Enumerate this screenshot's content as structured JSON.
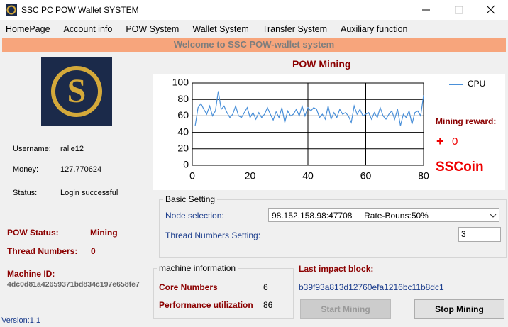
{
  "window": {
    "title": "SSC PC POW Wallet SYSTEM"
  },
  "menu": [
    "HomePage",
    "Account info",
    "POW System",
    "Wallet System",
    "Transfer System",
    "Auxiliary function"
  ],
  "banner": "Welcome to SSC POW-wallet system",
  "user": {
    "username_label": "Username:",
    "username": "ralle12",
    "money_label": "Money:",
    "money": "127.770624",
    "status_label": "Status:",
    "status": "Login successful"
  },
  "pow": {
    "status_label": "POW Status:",
    "status": "Mining",
    "threads_label": "Thread Numbers:",
    "threads": "0",
    "machine_label": "Machine ID:",
    "machine_id": "4dc0d81a42659371bd834c197e658fe7"
  },
  "version": "Version:1.1",
  "chart_data": {
    "type": "line",
    "title": "POW Mining",
    "x": [
      1,
      2,
      3,
      4,
      5,
      6,
      7,
      8,
      9,
      10,
      11,
      12,
      13,
      14,
      15,
      16,
      17,
      18,
      19,
      20,
      21,
      22,
      23,
      24,
      25,
      26,
      27,
      28,
      29,
      30,
      31,
      32,
      33,
      34,
      35,
      36,
      37,
      38,
      39,
      40,
      41,
      42,
      43,
      44,
      45,
      46,
      47,
      48,
      49,
      50,
      51,
      52,
      53,
      54,
      55,
      56,
      57,
      58,
      59,
      60,
      61,
      62,
      63,
      64,
      65,
      66,
      67,
      68,
      69,
      70,
      71,
      72,
      73,
      74,
      75,
      76,
      77,
      78,
      79,
      80
    ],
    "series": [
      {
        "name": "CPU",
        "color": "#4a90d9",
        "values": [
          48,
          70,
          75,
          68,
          62,
          72,
          60,
          66,
          90,
          68,
          72,
          64,
          58,
          62,
          72,
          60,
          58,
          64,
          70,
          58,
          64,
          56,
          64,
          58,
          62,
          70,
          62,
          55,
          65,
          58,
          70,
          52,
          66,
          60,
          62,
          68,
          60,
          72,
          60,
          70,
          66,
          70,
          68,
          58,
          62,
          56,
          72,
          56,
          64,
          58,
          68,
          62,
          64,
          60,
          52,
          72,
          62,
          68,
          60,
          62,
          64,
          56,
          64,
          58,
          70,
          60,
          56,
          62,
          66,
          56,
          68,
          48,
          62,
          58,
          66,
          50,
          64,
          66,
          60,
          85
        ]
      }
    ],
    "xlim": [
      0,
      80
    ],
    "ylim": [
      0,
      100
    ],
    "xticks": [
      0,
      20,
      40,
      60,
      80
    ],
    "yticks": [
      0,
      20,
      40,
      60,
      80,
      100
    ],
    "grid": true,
    "legend": "top-right"
  },
  "reward": {
    "label": "Mining reward:",
    "sign": "+",
    "amount": "0",
    "unit": "SSCoin"
  },
  "basic": {
    "title": "Basic Setting",
    "node_label": "Node selection:",
    "node_value": "98.152.158.98:47708     Rate-Bouns:50%",
    "thread_label": "Thread Numbers Setting:",
    "thread_value": "3"
  },
  "machine": {
    "title": "machine information",
    "core_label": "Core Numbers",
    "core_value": "6",
    "perf_label": "Performance utilization",
    "perf_value": "86"
  },
  "block": {
    "label": "Last impact block:",
    "hash": "b39f93a813d12760efa1216bc11b8dc1"
  },
  "buttons": {
    "start": "Start Mining",
    "stop": "Stop Mining"
  }
}
